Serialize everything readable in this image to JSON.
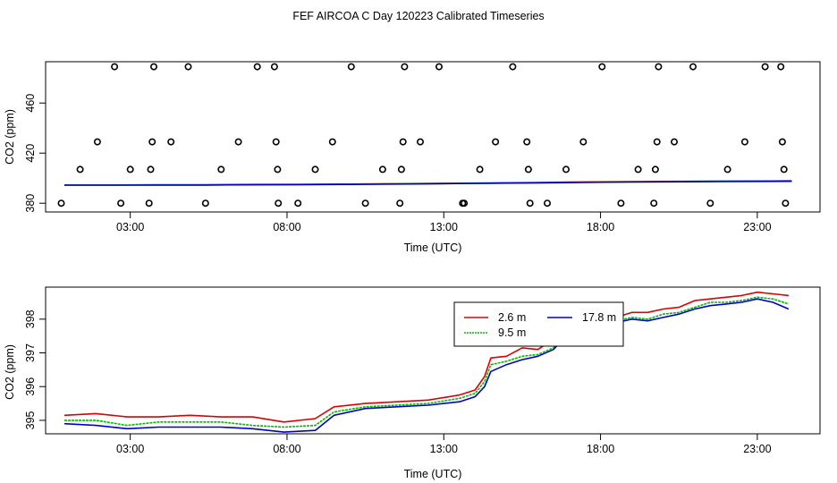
{
  "title": "FEF AIRCOA C  Day 120223  Calibrated Timeseries",
  "chart_data": [
    {
      "type": "scatter+line",
      "xlabel": "Time (UTC)",
      "ylabel": "CO2 (ppm)",
      "xlim": [
        0.3,
        25.0
      ],
      "ylim": [
        373,
        493
      ],
      "xticks": [
        3,
        8,
        13,
        18,
        23
      ],
      "xtick_labels": [
        "03:00",
        "08:00",
        "13:00",
        "18:00",
        "23:00"
      ],
      "yticks": [
        380,
        420,
        460
      ],
      "ytick_labels": [
        "380",
        "420",
        "460"
      ],
      "grid": false,
      "scatter_points": {
        "x": [
          0.8,
          1.4,
          1.95,
          2.5,
          2.7,
          3.0,
          3.6,
          3.65,
          3.7,
          3.75,
          4.3,
          4.85,
          5.4,
          5.9,
          6.45,
          7.05,
          7.6,
          7.65,
          7.7,
          7.72,
          8.35,
          8.9,
          9.45,
          10.05,
          10.5,
          11.05,
          11.6,
          11.65,
          11.7,
          11.75,
          12.25,
          12.85,
          13.6,
          13.65,
          14.15,
          14.65,
          15.2,
          15.65,
          15.7,
          15.75,
          16.3,
          16.9,
          17.45,
          18.05,
          18.65,
          19.2,
          19.7,
          19.75,
          19.8,
          19.85,
          20.35,
          20.95,
          21.5,
          22.05,
          22.6,
          23.25,
          23.75,
          23.8,
          23.85,
          23.9
        ],
        "y": [
          380,
          407,
          429,
          489,
          380,
          407,
          380,
          407,
          429,
          489,
          429,
          489,
          380,
          407,
          429,
          489,
          489,
          429,
          407,
          380,
          380,
          407,
          429,
          489,
          380,
          407,
          380,
          407,
          429,
          489,
          429,
          489,
          380,
          380,
          407,
          429,
          489,
          429,
          407,
          380,
          380,
          407,
          429,
          489,
          380,
          407,
          380,
          407,
          429,
          489,
          429,
          489,
          380,
          407,
          429,
          489,
          489,
          429,
          407,
          380
        ],
        "marker": "open-circle",
        "color": "#000000"
      },
      "series": [
        {
          "color": "#dd0000",
          "values": [
            394.6,
            394.6,
            394.8,
            394.8,
            395.0,
            395.1,
            395.3,
            395.6,
            395.9,
            396.2,
            396.6,
            397.0,
            397.3,
            397.5,
            397.7,
            397.8,
            397.9
          ]
        },
        {
          "color": "#00bb00",
          "values": [
            394.5,
            394.5,
            394.6,
            394.6,
            394.8,
            394.9,
            395.1,
            395.4,
            395.7,
            396.0,
            396.3,
            396.7,
            397.0,
            397.2,
            397.4,
            397.5,
            397.6
          ]
        },
        {
          "color": "#0000cc",
          "values": [
            394.4,
            394.4,
            394.5,
            394.5,
            394.7,
            394.8,
            395.0,
            395.3,
            395.6,
            395.9,
            396.2,
            396.6,
            396.9,
            397.1,
            397.3,
            397.4,
            397.5
          ]
        }
      ],
      "series_x": [
        0.9,
        2.4,
        3.9,
        5.4,
        6.9,
        8.4,
        9.9,
        11.4,
        12.9,
        14.4,
        15.9,
        17.4,
        18.9,
        20.4,
        21.9,
        23.4,
        24.1
      ]
    },
    {
      "type": "line",
      "xlabel": "Time (UTC)",
      "ylabel": "CO2 (ppm)",
      "xlim": [
        0.3,
        25.0
      ],
      "ylim": [
        394.6,
        398.95
      ],
      "xticks": [
        3,
        8,
        13,
        18,
        23
      ],
      "xtick_labels": [
        "03:00",
        "08:00",
        "13:00",
        "18:00",
        "23:00"
      ],
      "yticks": [
        395,
        396,
        397,
        398
      ],
      "ytick_labels": [
        "395",
        "396",
        "397",
        "398"
      ],
      "grid": false,
      "legend": {
        "placement": "top-center",
        "entries": [
          "2.6 m",
          "9.5 m",
          "17.8 m"
        ]
      },
      "x": [
        0.9,
        1.9,
        2.9,
        3.9,
        4.9,
        5.9,
        6.9,
        7.9,
        8.9,
        9.5,
        10.5,
        11.5,
        12.5,
        13.5,
        14.0,
        14.3,
        14.5,
        15.0,
        15.5,
        16.0,
        16.5,
        17.0,
        17.5,
        18.0,
        18.5,
        19.0,
        19.5,
        20.0,
        20.5,
        21.0,
        21.5,
        22.0,
        22.5,
        23.0,
        23.5,
        24.0
      ],
      "series": [
        {
          "name": "2.6 m",
          "color": "#dd0000",
          "values": [
            395.15,
            395.2,
            395.1,
            395.1,
            395.15,
            395.1,
            395.1,
            394.95,
            395.05,
            395.4,
            395.5,
            395.55,
            395.6,
            395.75,
            395.9,
            396.3,
            396.85,
            396.9,
            397.15,
            397.1,
            397.4,
            397.85,
            397.75,
            397.9,
            398.05,
            398.2,
            398.2,
            398.3,
            398.35,
            398.55,
            398.6,
            398.65,
            398.7,
            398.8,
            398.75,
            398.7
          ]
        },
        {
          "name": "9.5 m",
          "color": "#00bb00",
          "values": [
            395.0,
            395.0,
            394.85,
            394.95,
            394.95,
            394.95,
            394.85,
            394.8,
            394.85,
            395.25,
            395.4,
            395.45,
            395.5,
            395.65,
            395.8,
            396.15,
            396.65,
            396.75,
            396.9,
            396.95,
            397.15,
            397.7,
            397.65,
            397.8,
            397.95,
            398.05,
            398.0,
            398.15,
            398.2,
            398.35,
            398.5,
            398.5,
            398.55,
            398.65,
            398.6,
            398.45
          ]
        },
        {
          "name": "17.8 m",
          "color": "#0000cc",
          "values": [
            394.9,
            394.85,
            394.75,
            394.8,
            394.8,
            394.8,
            394.75,
            394.65,
            394.7,
            395.15,
            395.35,
            395.4,
            395.45,
            395.55,
            395.7,
            396.0,
            396.45,
            396.65,
            396.8,
            396.9,
            397.1,
            397.6,
            397.6,
            397.7,
            397.9,
            398.0,
            397.95,
            398.05,
            398.15,
            398.3,
            398.4,
            398.45,
            398.5,
            398.6,
            398.5,
            398.3
          ]
        }
      ]
    }
  ]
}
